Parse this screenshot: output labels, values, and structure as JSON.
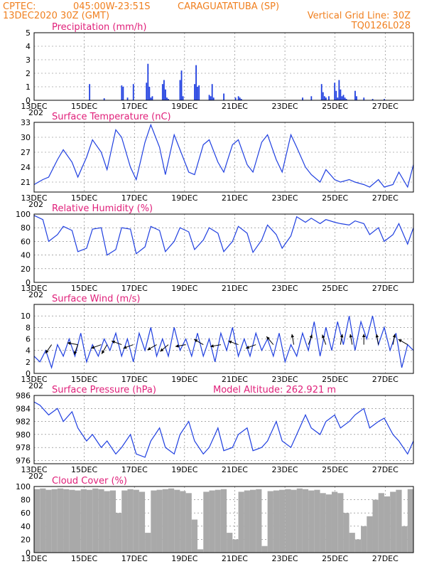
{
  "header": {
    "line1_left": "CPTEC:",
    "line1_mid": "045:00W-23:51S",
    "line1_right": "CARAGUATATUBA (SP)",
    "line2_left": "13DEC2020 30Z (GMT)",
    "line2_right": "Vertical Grid Line: 30Z",
    "line3_right": "TQ0126L028"
  },
  "colors": {
    "header": "#f08020",
    "panel_title": "#e0207a",
    "series": "#1f3fe0",
    "precip_bar": "#1f3fe0",
    "cloud": "#a9a9a9"
  },
  "chart_data": [
    {
      "type": "bar",
      "title": "Precipitation (mm/h)",
      "ylim": [
        0,
        5
      ],
      "yticks": [
        "0",
        "1",
        "2",
        "3",
        "4",
        "5"
      ],
      "xlabels": [
        "13DEC",
        "15DEC",
        "17DEC",
        "19DEC",
        "21DEC",
        "23DEC",
        "25DEC",
        "27DEC"
      ],
      "xlabel_year": "202",
      "grid": true,
      "x": [
        1.9,
        2.4,
        3.0,
        3.05,
        3.2,
        3.4,
        3.85,
        3.9,
        3.95,
        4.0,
        4.05,
        4.4,
        4.45,
        4.5,
        4.55,
        4.6,
        5.0,
        5.05,
        5.1,
        5.5,
        5.55,
        5.6,
        5.65,
        6.0,
        6.05,
        6.1,
        6.15,
        6.5,
        6.9,
        7.0,
        7.05,
        7.1,
        9.2,
        9.5,
        9.85,
        9.9,
        9.95,
        10.0,
        10.1,
        10.3,
        10.35,
        10.4,
        10.45,
        10.5,
        10.55,
        10.6,
        10.65,
        10.7,
        11.0,
        11.05,
        11.3,
        11.6,
        12.0
      ],
      "values": [
        1.2,
        0.15,
        1.1,
        1.0,
        0.2,
        1.2,
        1.3,
        2.7,
        1.0,
        0.2,
        0.3,
        1.2,
        1.5,
        0.8,
        0.2,
        0.1,
        1.5,
        2.2,
        0.3,
        1.2,
        2.6,
        1.0,
        1.1,
        0.4,
        0.3,
        1.2,
        0.2,
        0.5,
        0.2,
        0.3,
        0.2,
        0.1,
        0.2,
        0.3,
        1.2,
        0.6,
        0.3,
        0.2,
        0.3,
        1.3,
        0.7,
        0.2,
        1.5,
        0.8,
        0.3,
        0.4,
        0.2,
        0.1,
        0.7,
        0.3,
        0.2,
        0.1,
        0.1
      ]
    },
    {
      "type": "line",
      "title": "Surface Temperature (nC)",
      "ylim": [
        19,
        33
      ],
      "yticks": [
        "21",
        "24",
        "27",
        "30",
        "33"
      ],
      "xlabels": [
        "13DEC",
        "15DEC",
        "17DEC",
        "19DEC",
        "21DEC",
        "23DEC",
        "25DEC",
        "27DEC"
      ],
      "xlabel_year": "202",
      "grid": true,
      "x": [
        0,
        0.3,
        0.5,
        0.8,
        1.0,
        1.3,
        1.5,
        1.8,
        2.0,
        2.3,
        2.5,
        2.8,
        3.0,
        3.3,
        3.5,
        3.8,
        4.0,
        4.3,
        4.5,
        4.8,
        5.0,
        5.3,
        5.5,
        5.8,
        6.0,
        6.3,
        6.5,
        6.8,
        7.0,
        7.3,
        7.5,
        7.8,
        8.0,
        8.3,
        8.5,
        8.8,
        9.0,
        9.3,
        9.5,
        9.8,
        10.0,
        10.3,
        10.5,
        10.8,
        11.0,
        11.3,
        11.5,
        11.8,
        12.0,
        12.3,
        12.5,
        12.8,
        13.0
      ],
      "values": [
        20.5,
        21.5,
        22,
        25.5,
        27.5,
        25,
        22,
        26,
        29.5,
        27,
        23.5,
        31.5,
        30,
        24,
        21.5,
        29,
        32.5,
        28,
        22.5,
        30.5,
        27.5,
        23,
        22.5,
        28.5,
        29.5,
        25,
        23,
        28.5,
        29.5,
        24.5,
        23,
        29,
        30.5,
        25.5,
        23,
        30.5,
        28,
        24,
        22.5,
        21,
        23.5,
        21.5,
        21,
        21.5,
        21,
        20.5,
        20,
        21.5,
        20,
        20.5,
        23,
        20,
        24.5
      ]
    },
    {
      "type": "line",
      "title": "Relative Humidity (%)",
      "ylim": [
        0,
        100
      ],
      "yticks": [
        "0",
        "20",
        "40",
        "60",
        "80",
        "100"
      ],
      "xlabels": [
        "13DEC",
        "15DEC",
        "17DEC",
        "19DEC",
        "21DEC",
        "23DEC",
        "25DEC",
        "27DEC"
      ],
      "xlabel_year": "202",
      "grid": true,
      "x": [
        0,
        0.3,
        0.5,
        0.8,
        1.0,
        1.3,
        1.5,
        1.8,
        2.0,
        2.3,
        2.5,
        2.8,
        3.0,
        3.3,
        3.5,
        3.8,
        4.0,
        4.3,
        4.5,
        4.8,
        5.0,
        5.3,
        5.5,
        5.8,
        6.0,
        6.3,
        6.5,
        6.8,
        7.0,
        7.3,
        7.5,
        7.8,
        8.0,
        8.3,
        8.5,
        8.8,
        9.0,
        9.3,
        9.5,
        9.8,
        10.0,
        10.3,
        10.5,
        10.8,
        11.0,
        11.3,
        11.5,
        11.8,
        12.0,
        12.3,
        12.5,
        12.8,
        13.0
      ],
      "values": [
        98,
        92,
        60,
        70,
        82,
        76,
        45,
        50,
        78,
        80,
        40,
        48,
        80,
        78,
        42,
        52,
        82,
        76,
        45,
        60,
        80,
        74,
        48,
        62,
        80,
        72,
        45,
        60,
        82,
        72,
        44,
        62,
        84,
        70,
        50,
        68,
        96,
        88,
        94,
        86,
        92,
        88,
        86,
        84,
        90,
        86,
        70,
        80,
        60,
        70,
        86,
        56,
        80
      ]
    },
    {
      "type": "line",
      "title": "Surface Wind (m/s)",
      "ylim": [
        0,
        12
      ],
      "yticks": [
        "0",
        "2",
        "4",
        "6",
        "8",
        "10"
      ],
      "xlabels": [
        "13DEC",
        "15DEC",
        "17DEC",
        "19DEC",
        "21DEC",
        "23DEC",
        "25DEC",
        "27DEC"
      ],
      "xlabel_year": "202",
      "grid": true,
      "x": [
        0,
        0.2,
        0.4,
        0.6,
        0.8,
        1.0,
        1.2,
        1.4,
        1.6,
        1.8,
        2.0,
        2.2,
        2.4,
        2.6,
        2.8,
        3.0,
        3.2,
        3.4,
        3.6,
        3.8,
        4.0,
        4.2,
        4.4,
        4.6,
        4.8,
        5.0,
        5.2,
        5.4,
        5.6,
        5.8,
        6.0,
        6.2,
        6.4,
        6.6,
        6.8,
        7.0,
        7.2,
        7.4,
        7.6,
        7.8,
        8.0,
        8.2,
        8.4,
        8.6,
        8.8,
        9.0,
        9.2,
        9.4,
        9.6,
        9.8,
        10.0,
        10.2,
        10.4,
        10.6,
        10.8,
        11.0,
        11.2,
        11.4,
        11.6,
        11.8,
        12.0,
        12.2,
        12.4,
        12.6,
        12.8,
        13.0
      ],
      "values": [
        3,
        2,
        4,
        1,
        5,
        3,
        6,
        3,
        7,
        2,
        5,
        3,
        6,
        4,
        7,
        3,
        6,
        2,
        7,
        4,
        8,
        3,
        6,
        3,
        8,
        4,
        6,
        3,
        7,
        3,
        6,
        2,
        7,
        4,
        8,
        3,
        6,
        3,
        7,
        4,
        6,
        3,
        7,
        2,
        5,
        3,
        7,
        4,
        9,
        3,
        8,
        4,
        9,
        5,
        10,
        4,
        9,
        6,
        10,
        5,
        8,
        4,
        7,
        1,
        5,
        4
      ]
    },
    {
      "type": "line",
      "title": "Surface Pressure (hPa)",
      "annotation": "Model Altitude: 262.921 m",
      "ylim": [
        975.5,
        986
      ],
      "yticks": [
        "976",
        "978",
        "980",
        "982",
        "984",
        "986"
      ],
      "xlabels": [
        "13DEC",
        "15DEC",
        "17DEC",
        "19DEC",
        "21DEC",
        "23DEC",
        "25DEC",
        "27DEC"
      ],
      "xlabel_year": "202",
      "grid": true,
      "x": [
        0,
        0.2,
        0.5,
        0.8,
        1.0,
        1.3,
        1.5,
        1.8,
        2.0,
        2.3,
        2.5,
        2.8,
        3.0,
        3.3,
        3.5,
        3.8,
        4.0,
        4.3,
        4.5,
        4.8,
        5.0,
        5.3,
        5.5,
        5.8,
        6.0,
        6.3,
        6.5,
        6.8,
        7.0,
        7.3,
        7.5,
        7.8,
        8.0,
        8.3,
        8.5,
        8.8,
        9.0,
        9.3,
        9.5,
        9.8,
        10.0,
        10.3,
        10.5,
        10.8,
        11.0,
        11.3,
        11.5,
        11.8,
        12.0,
        12.3,
        12.5,
        12.8,
        13.0
      ],
      "values": [
        985,
        984.5,
        983,
        984,
        982,
        983.5,
        981,
        979,
        980,
        978,
        979,
        977,
        978,
        980,
        977,
        976.5,
        979,
        981,
        978,
        977,
        980,
        982,
        979,
        977,
        978,
        981,
        977.5,
        978,
        980,
        981,
        977.5,
        978,
        979,
        982,
        979,
        978,
        980,
        983,
        981,
        980,
        982,
        983,
        981,
        982,
        983,
        984,
        981,
        982,
        982.5,
        980,
        979,
        977,
        979
      ]
    },
    {
      "type": "bar",
      "title": "Cloud Cover (%)",
      "ylim": [
        0,
        100
      ],
      "yticks": [
        "0",
        "20",
        "40",
        "60",
        "80",
        "100"
      ],
      "xlabels": [
        "13DEC",
        "15DEC",
        "17DEC",
        "19DEC",
        "21DEC",
        "23DEC",
        "25DEC",
        "27DEC"
      ],
      "grid": true,
      "x": [
        0.0,
        0.2,
        0.4,
        0.6,
        0.8,
        1.0,
        1.2,
        1.4,
        1.6,
        1.8,
        2.0,
        2.2,
        2.4,
        2.6,
        2.8,
        3.0,
        3.2,
        3.4,
        3.6,
        3.8,
        4.0,
        4.2,
        4.4,
        4.6,
        4.8,
        5.0,
        5.2,
        5.4,
        5.6,
        5.8,
        6.0,
        6.2,
        6.4,
        6.6,
        6.8,
        7.0,
        7.2,
        7.4,
        7.6,
        7.8,
        8.0,
        8.2,
        8.4,
        8.6,
        8.8,
        9.0,
        9.2,
        9.4,
        9.6,
        9.8,
        10.0,
        10.2,
        10.4,
        10.6,
        10.8,
        11.0,
        11.2,
        11.4,
        11.6,
        11.8,
        12.0,
        12.2,
        12.4,
        12.6,
        12.8
      ],
      "values": [
        96,
        97,
        95,
        96,
        97,
        96,
        95,
        94,
        96,
        95,
        97,
        96,
        93,
        94,
        60,
        94,
        96,
        95,
        92,
        30,
        94,
        95,
        96,
        97,
        95,
        93,
        90,
        50,
        5,
        92,
        94,
        95,
        96,
        30,
        20,
        92,
        94,
        95,
        96,
        10,
        93,
        94,
        95,
        96,
        95,
        97,
        96,
        94,
        95,
        90,
        88,
        92,
        90,
        60,
        30,
        20,
        40,
        55,
        80,
        90,
        85,
        92,
        95,
        40,
        96
      ]
    }
  ]
}
